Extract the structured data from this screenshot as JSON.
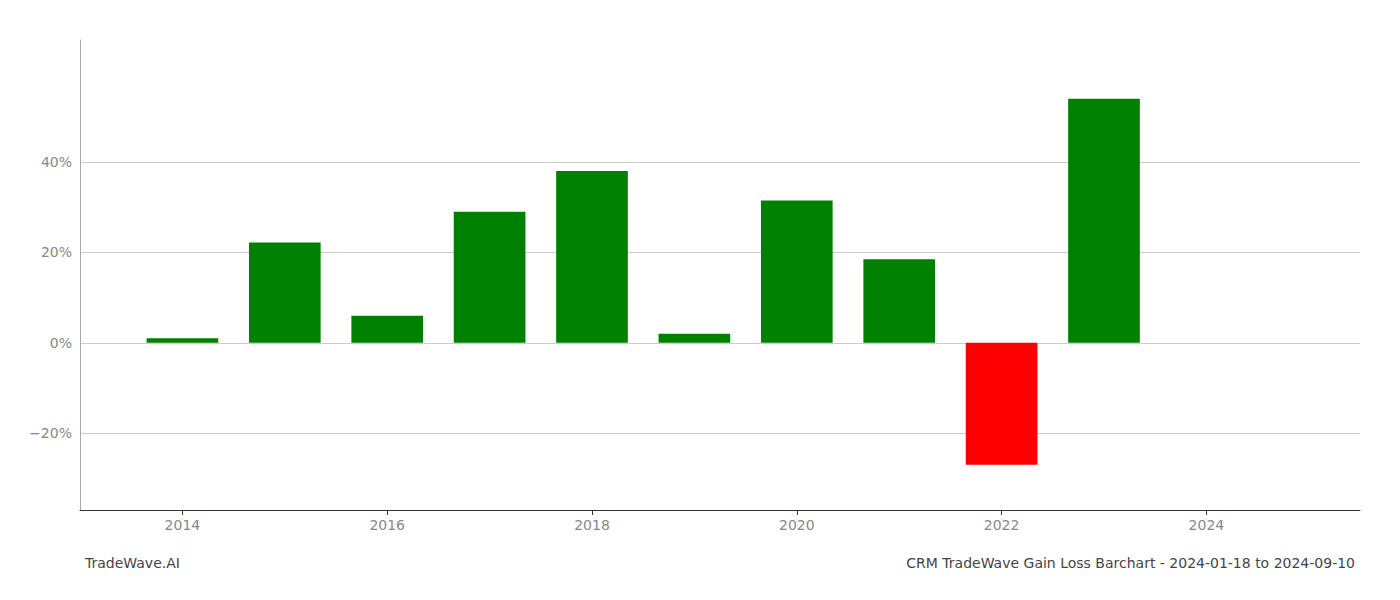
{
  "chart_data": {
    "type": "bar",
    "title": "CRM TradeWave Gain Loss Barchart - 2024-01-18 to 2024-09-10",
    "annotations": [
      "TradeWave.AI"
    ],
    "x": [
      2014,
      2015,
      2016,
      2017,
      2018,
      2019,
      2020,
      2021,
      2022,
      2023
    ],
    "values": [
      0.01,
      0.222,
      0.06,
      0.29,
      0.38,
      0.02,
      0.315,
      0.185,
      -0.27,
      0.54
    ],
    "colors": [
      "#008000",
      "#008000",
      "#008000",
      "#008000",
      "#008000",
      "#008000",
      "#008000",
      "#008000",
      "#ff0000",
      "#008000"
    ],
    "xlim": [
      2013.0,
      2025.5
    ],
    "xticks": [
      2014,
      2016,
      2018,
      2020,
      2022,
      2024
    ],
    "ylim": [
      -0.37,
      0.67
    ],
    "yticks": [
      {
        "value": -0.2,
        "label": "−20%"
      },
      {
        "value": 0.0,
        "label": "0%"
      },
      {
        "value": 0.2,
        "label": "20%"
      },
      {
        "value": 0.4,
        "label": "40%"
      }
    ],
    "grid": true
  }
}
